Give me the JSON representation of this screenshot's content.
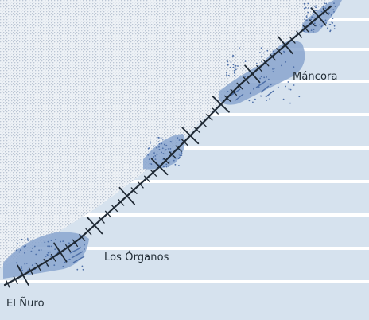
{
  "map": {
    "places": [
      {
        "id": "mancora",
        "name": "Máncora"
      },
      {
        "id": "los-organos",
        "name": "Los Órganos"
      },
      {
        "id": "el-nuro",
        "name": "El Ñuro"
      }
    ],
    "colors": {
      "sea": "#d6e2ee",
      "sea_band": "#ffffff",
      "land_pattern": "#bcc6d4",
      "land_bg": "#eef2f6",
      "road": "#1e2833",
      "coastal_zone": "#8aa6cf",
      "zone_dots": "#4d6fa8"
    }
  }
}
